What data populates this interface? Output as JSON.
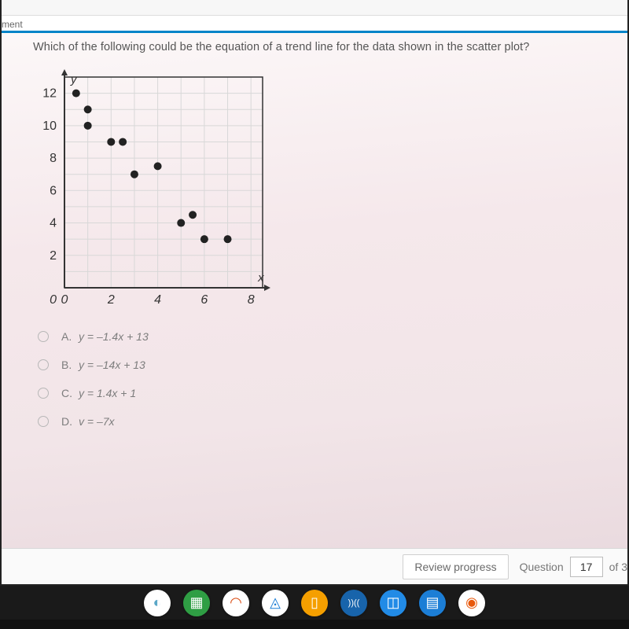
{
  "browser": {
    "tab_fragment": "ment"
  },
  "question": "Which of the following could be the equation of a trend line for the data shown in the scatter plot?",
  "chart": {
    "type": "scatter",
    "x_label": "x",
    "y_label": "y",
    "xlim": [
      0,
      8.5
    ],
    "ylim": [
      0,
      13
    ],
    "xticks": [
      0,
      2,
      4,
      6,
      8
    ],
    "yticks": [
      0,
      2,
      4,
      6,
      8,
      10,
      12
    ],
    "grid_step": 1,
    "grid_color": "#d8d8d8",
    "axis_color": "#333333",
    "point_color": "#222222",
    "point_radius": 5,
    "tick_fontsize": 16,
    "label_fontsize": 15,
    "points": [
      {
        "x": 0.5,
        "y": 12
      },
      {
        "x": 1,
        "y": 11
      },
      {
        "x": 1,
        "y": 10
      },
      {
        "x": 2,
        "y": 9
      },
      {
        "x": 2.5,
        "y": 9
      },
      {
        "x": 3,
        "y": 7
      },
      {
        "x": 4,
        "y": 7.5
      },
      {
        "x": 5,
        "y": 4
      },
      {
        "x": 5.5,
        "y": 4.5
      },
      {
        "x": 6,
        "y": 3
      },
      {
        "x": 7,
        "y": 3
      }
    ]
  },
  "answers": [
    {
      "letter": "A.",
      "text": "y = –1.4x + 13"
    },
    {
      "letter": "B.",
      "text": "y = –14x + 13"
    },
    {
      "letter": "C.",
      "text": "y = 1.4x + 1"
    },
    {
      "letter": "D.",
      "text": "v = –7x"
    }
  ],
  "footer": {
    "review": "Review progress",
    "question_label": "Question",
    "question_num": "17",
    "of_label": "of 3"
  },
  "taskbar_icons": [
    {
      "name": "app1",
      "bg": "#ffffff",
      "glyph": "◐",
      "color": "#5aa7c7"
    },
    {
      "name": "app2",
      "bg": "#2f9e44",
      "glyph": "▦",
      "color": "#ffffff",
      "square": true
    },
    {
      "name": "app3",
      "bg": "#ffffff",
      "glyph": "◠",
      "color": "#d9480f"
    },
    {
      "name": "drive",
      "bg": "#ffffff",
      "glyph": "◬",
      "color": "#1c7ed6"
    },
    {
      "name": "app5",
      "bg": "#f59f00",
      "glyph": "▯",
      "color": "#ffffff",
      "square": true
    },
    {
      "name": "app6",
      "bg": "#1864ab",
      "glyph": "))((",
      "color": "#ffffff",
      "square": true
    },
    {
      "name": "app7",
      "bg": "#228be6",
      "glyph": "◫",
      "color": "#ffffff",
      "square": true
    },
    {
      "name": "docs",
      "bg": "#1c7ed6",
      "glyph": "▤",
      "color": "#ffffff",
      "square": true
    },
    {
      "name": "chrome",
      "bg": "#ffffff",
      "glyph": "◉",
      "color": "#e8590c"
    }
  ]
}
